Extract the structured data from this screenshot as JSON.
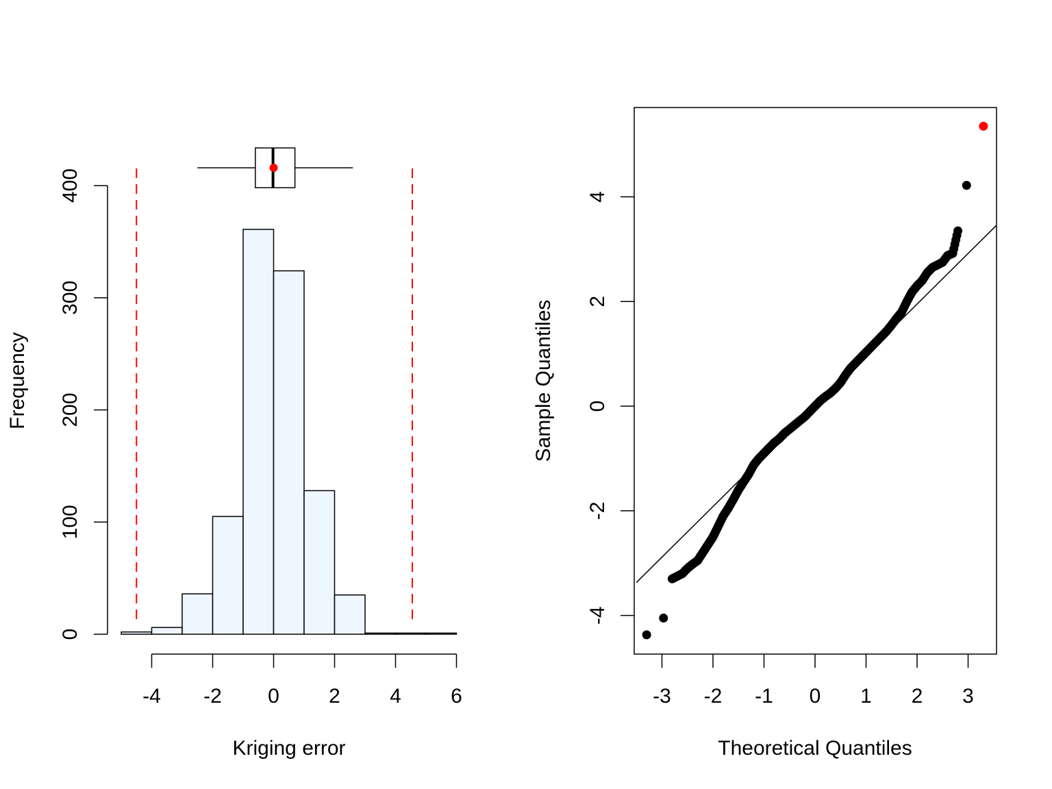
{
  "chart_data": [
    {
      "type": "bar",
      "subtype": "histogram",
      "xlabel": "Kriging error",
      "ylabel": "Frequency",
      "xlim": [
        -5,
        6
      ],
      "ylim": [
        0,
        400
      ],
      "x_ticks": [
        "-4",
        "-2",
        "0",
        "2",
        "4",
        "6"
      ],
      "y_ticks": [
        "0",
        "100",
        "200",
        "300",
        "400"
      ],
      "bin_width": 1,
      "bins": [
        {
          "from": -5,
          "to": -4,
          "count": 2
        },
        {
          "from": -4,
          "to": -3,
          "count": 6
        },
        {
          "from": -3,
          "to": -2,
          "count": 36
        },
        {
          "from": -2,
          "to": -1,
          "count": 105
        },
        {
          "from": -1,
          "to": 0,
          "count": 361
        },
        {
          "from": 0,
          "to": 1,
          "count": 324
        },
        {
          "from": 1,
          "to": 2,
          "count": 128
        },
        {
          "from": 2,
          "to": 3,
          "count": 35
        },
        {
          "from": 3,
          "to": 4,
          "count": 1
        },
        {
          "from": 4,
          "to": 5,
          "count": 1
        },
        {
          "from": 5,
          "to": 6,
          "count": 1
        }
      ],
      "bar_color": "#eef6ff",
      "boxplot": {
        "whisker_low": -2.5,
        "q1": -0.6,
        "median": -0.02,
        "q3": 0.7,
        "whisker_high": 2.6,
        "mean": 0.0,
        "mean_color": "#ff0000"
      },
      "reference_lines": {
        "values": [
          -4.5,
          4.55
        ],
        "color": "#ff0000",
        "style": "dashed"
      },
      "grid": false
    },
    {
      "type": "scatter",
      "subtype": "qq-plot",
      "xlabel": "Theoretical Quantiles",
      "ylabel": "Sample Quantiles",
      "xlim": [
        -3.5,
        3.55
      ],
      "ylim": [
        -4.75,
        5.75
      ],
      "x_ticks": [
        "-3",
        "-2",
        "-1",
        "0",
        "1",
        "2",
        "3"
      ],
      "y_ticks": [
        "-4",
        "-2",
        "0",
        "2",
        "4"
      ],
      "reference_line": {
        "x": [
          -3.5,
          3.55
        ],
        "y": [
          -3.37,
          3.45
        ]
      },
      "points": [
        [
          -3.3,
          -4.37
        ],
        [
          -2.97,
          -4.05
        ],
        [
          -2.8,
          -3.3
        ],
        [
          -2.7,
          -3.25
        ],
        [
          -2.6,
          -3.2
        ],
        [
          -2.5,
          -3.1
        ],
        [
          -2.4,
          -3.02
        ],
        [
          -2.3,
          -2.95
        ],
        [
          -2.2,
          -2.8
        ],
        [
          -2.1,
          -2.65
        ],
        [
          -2.0,
          -2.5
        ],
        [
          -1.9,
          -2.3
        ],
        [
          -1.8,
          -2.1
        ],
        [
          -1.7,
          -1.95
        ],
        [
          -1.6,
          -1.78
        ],
        [
          -1.5,
          -1.6
        ],
        [
          -1.4,
          -1.45
        ],
        [
          -1.3,
          -1.3
        ],
        [
          -1.2,
          -1.12
        ],
        [
          -1.1,
          -1.0
        ],
        [
          -1.0,
          -0.9
        ],
        [
          -0.9,
          -0.8
        ],
        [
          -0.8,
          -0.7
        ],
        [
          -0.7,
          -0.62
        ],
        [
          -0.6,
          -0.52
        ],
        [
          -0.5,
          -0.44
        ],
        [
          -0.4,
          -0.36
        ],
        [
          -0.3,
          -0.28
        ],
        [
          -0.2,
          -0.2
        ],
        [
          -0.1,
          -0.1
        ],
        [
          0.0,
          0.0
        ],
        [
          0.1,
          0.1
        ],
        [
          0.2,
          0.18
        ],
        [
          0.3,
          0.25
        ],
        [
          0.4,
          0.34
        ],
        [
          0.5,
          0.45
        ],
        [
          0.6,
          0.6
        ],
        [
          0.7,
          0.73
        ],
        [
          0.8,
          0.83
        ],
        [
          0.9,
          0.93
        ],
        [
          1.0,
          1.03
        ],
        [
          1.1,
          1.13
        ],
        [
          1.2,
          1.23
        ],
        [
          1.3,
          1.33
        ],
        [
          1.4,
          1.43
        ],
        [
          1.5,
          1.55
        ],
        [
          1.6,
          1.68
        ],
        [
          1.7,
          1.8
        ],
        [
          1.8,
          2.0
        ],
        [
          1.9,
          2.18
        ],
        [
          2.0,
          2.3
        ],
        [
          2.1,
          2.4
        ],
        [
          2.2,
          2.55
        ],
        [
          2.3,
          2.65
        ],
        [
          2.4,
          2.7
        ],
        [
          2.5,
          2.75
        ],
        [
          2.6,
          2.88
        ],
        [
          2.7,
          2.92
        ],
        [
          2.8,
          3.35
        ],
        [
          2.97,
          4.22
        ],
        [
          3.3,
          5.35
        ]
      ],
      "highlighted_point": {
        "x": 3.3,
        "y": 5.35,
        "color": "#ff0000"
      },
      "grid": false
    }
  ]
}
